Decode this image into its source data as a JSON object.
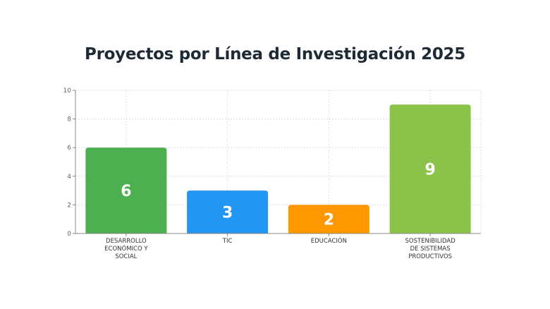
{
  "chart_data": {
    "type": "bar",
    "title": "Proyectos por Línea de Investigación 2025",
    "categories": [
      [
        "DESARROLLO",
        "ECONÓMICO Y",
        "SOCIAL"
      ],
      [
        "TIC"
      ],
      [
        "EDUCACIÓN"
      ],
      [
        "SOSTENIBILIDAD",
        "DE SISTEMAS",
        "PRODUCTIVOS"
      ]
    ],
    "values": [
      6,
      3,
      2,
      9
    ],
    "colors": [
      "#4CAF50",
      "#2196F3",
      "#FF9800",
      "#8BC34A"
    ],
    "ylim": [
      0,
      10
    ],
    "yticks": [
      0,
      2,
      4,
      6,
      8,
      10
    ],
    "grid": true,
    "xlabel": "",
    "ylabel": ""
  }
}
